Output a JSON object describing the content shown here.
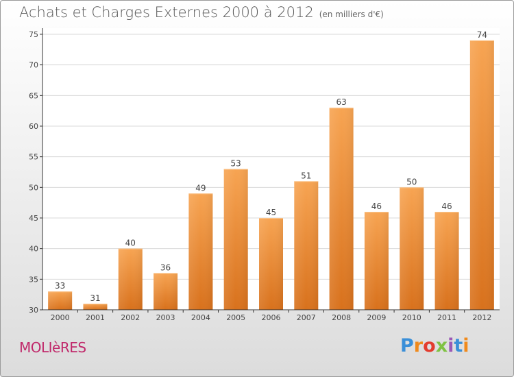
{
  "header": {
    "title": "Achats et Charges Externes 2000 à 2012",
    "unit": "(en milliers d'€)"
  },
  "footer": {
    "commune": "MOLIèRES",
    "logo_text": "Proxiti",
    "logo_colors": [
      "#3a8fd8",
      "#f08a1c",
      "#e33c2e",
      "#7fc242",
      "#9b59b6",
      "#3a8fd8",
      "#f08a1c"
    ]
  },
  "colors": {
    "bar_top": "#f7a452",
    "bar_bottom": "#d8711c",
    "grid": "#d9d9d9",
    "axis": "#333333"
  },
  "chart_data": {
    "type": "bar",
    "categories": [
      "2000",
      "2001",
      "2002",
      "2003",
      "2004",
      "2005",
      "2006",
      "2007",
      "2008",
      "2009",
      "2010",
      "2011",
      "2012"
    ],
    "values": [
      33,
      31,
      40,
      36,
      49,
      53,
      45,
      51,
      63,
      46,
      50,
      46,
      74
    ],
    "yticks": [
      30,
      35,
      40,
      45,
      50,
      55,
      60,
      65,
      70,
      75
    ],
    "ylim": [
      30,
      75
    ],
    "grid": true,
    "legend": "none"
  }
}
